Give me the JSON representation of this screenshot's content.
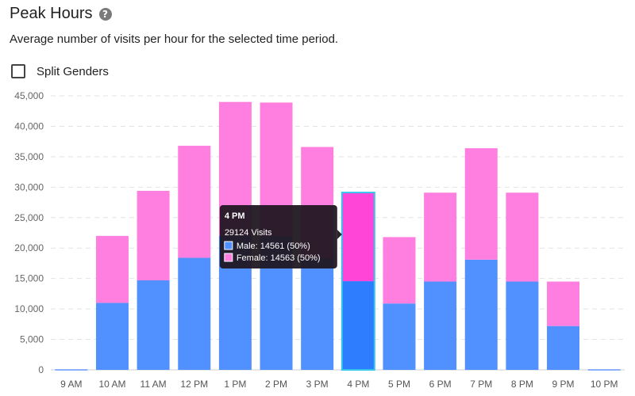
{
  "header": {
    "title": "Peak Hours",
    "help_icon": "question-circle-icon",
    "subtitle": "Average number of visits per hour for the selected time period."
  },
  "controls": {
    "split_genders_label": "Split Genders",
    "split_genders_checked": false
  },
  "colors": {
    "male": "#5090ff",
    "female": "#ff7fe0",
    "male_highlight": "#2f7dff",
    "female_highlight": "#ff45d8",
    "highlight_border": "#35c6ee",
    "tooltip_bg": "#1f1620"
  },
  "chart_data": {
    "type": "bar",
    "stacked": true,
    "categories": [
      "9 AM",
      "10 AM",
      "11 AM",
      "12 PM",
      "1 PM",
      "2 PM",
      "3 PM",
      "4 PM",
      "5 PM",
      "6 PM",
      "7 PM",
      "8 PM",
      "9 PM",
      "10 PM"
    ],
    "series": [
      {
        "name": "Male",
        "values": [
          0,
          11000,
          14700,
          18400,
          22000,
          21900,
          18300,
          14561,
          10900,
          14500,
          18100,
          14500,
          7200,
          0
        ]
      },
      {
        "name": "Female",
        "values": [
          0,
          11000,
          14700,
          18400,
          22000,
          22000,
          18300,
          14563,
          10900,
          14600,
          18300,
          14600,
          7300,
          0
        ]
      }
    ],
    "ylim": [
      0,
      45000
    ],
    "yticks": [
      "0",
      "5,000",
      "10,000",
      "15,000",
      "20,000",
      "25,000",
      "30,000",
      "35,000",
      "40,000",
      "45,000"
    ],
    "grid": true,
    "highlighted_category": "4 PM",
    "tooltip": {
      "title": "4 PM",
      "total": "29124 Visits",
      "lines": [
        "Male: 14561 (50%)",
        "Female: 14563 (50%)"
      ]
    }
  }
}
